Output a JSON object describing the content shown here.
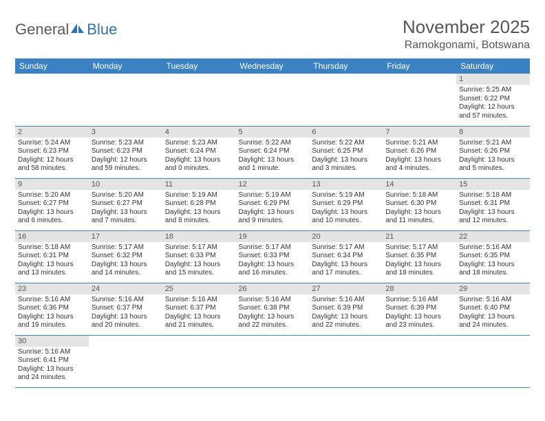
{
  "logo": {
    "part1": "General",
    "part2": "Blue"
  },
  "title": "November 2025",
  "location": "Ramokgonami, Botswana",
  "colors": {
    "header_bg": "#3b82c4",
    "header_text": "#ffffff",
    "daynum_bg": "#e4e4e4",
    "border": "#3b82c4",
    "title_text": "#555555",
    "body_text": "#333333"
  },
  "weekdays": [
    "Sunday",
    "Monday",
    "Tuesday",
    "Wednesday",
    "Thursday",
    "Friday",
    "Saturday"
  ],
  "days": {
    "1": {
      "sr": "5:25 AM",
      "ss": "6:22 PM",
      "dl": "12 hours and 57 minutes."
    },
    "2": {
      "sr": "5:24 AM",
      "ss": "6:23 PM",
      "dl": "12 hours and 58 minutes."
    },
    "3": {
      "sr": "5:23 AM",
      "ss": "6:23 PM",
      "dl": "12 hours and 59 minutes."
    },
    "4": {
      "sr": "5:23 AM",
      "ss": "6:24 PM",
      "dl": "13 hours and 0 minutes."
    },
    "5": {
      "sr": "5:22 AM",
      "ss": "6:24 PM",
      "dl": "13 hours and 1 minute."
    },
    "6": {
      "sr": "5:22 AM",
      "ss": "6:25 PM",
      "dl": "13 hours and 3 minutes."
    },
    "7": {
      "sr": "5:21 AM",
      "ss": "6:26 PM",
      "dl": "13 hours and 4 minutes."
    },
    "8": {
      "sr": "5:21 AM",
      "ss": "6:26 PM",
      "dl": "13 hours and 5 minutes."
    },
    "9": {
      "sr": "5:20 AM",
      "ss": "6:27 PM",
      "dl": "13 hours and 6 minutes."
    },
    "10": {
      "sr": "5:20 AM",
      "ss": "6:27 PM",
      "dl": "13 hours and 7 minutes."
    },
    "11": {
      "sr": "5:19 AM",
      "ss": "6:28 PM",
      "dl": "13 hours and 8 minutes."
    },
    "12": {
      "sr": "5:19 AM",
      "ss": "6:29 PM",
      "dl": "13 hours and 9 minutes."
    },
    "13": {
      "sr": "5:19 AM",
      "ss": "6:29 PM",
      "dl": "13 hours and 10 minutes."
    },
    "14": {
      "sr": "5:18 AM",
      "ss": "6:30 PM",
      "dl": "13 hours and 11 minutes."
    },
    "15": {
      "sr": "5:18 AM",
      "ss": "6:31 PM",
      "dl": "13 hours and 12 minutes."
    },
    "16": {
      "sr": "5:18 AM",
      "ss": "6:31 PM",
      "dl": "13 hours and 13 minutes."
    },
    "17": {
      "sr": "5:17 AM",
      "ss": "6:32 PM",
      "dl": "13 hours and 14 minutes."
    },
    "18": {
      "sr": "5:17 AM",
      "ss": "6:33 PM",
      "dl": "13 hours and 15 minutes."
    },
    "19": {
      "sr": "5:17 AM",
      "ss": "6:33 PM",
      "dl": "13 hours and 16 minutes."
    },
    "20": {
      "sr": "5:17 AM",
      "ss": "6:34 PM",
      "dl": "13 hours and 17 minutes."
    },
    "21": {
      "sr": "5:17 AM",
      "ss": "6:35 PM",
      "dl": "13 hours and 18 minutes."
    },
    "22": {
      "sr": "5:16 AM",
      "ss": "6:35 PM",
      "dl": "13 hours and 18 minutes."
    },
    "23": {
      "sr": "5:16 AM",
      "ss": "6:36 PM",
      "dl": "13 hours and 19 minutes."
    },
    "24": {
      "sr": "5:16 AM",
      "ss": "6:37 PM",
      "dl": "13 hours and 20 minutes."
    },
    "25": {
      "sr": "5:16 AM",
      "ss": "6:37 PM",
      "dl": "13 hours and 21 minutes."
    },
    "26": {
      "sr": "5:16 AM",
      "ss": "6:38 PM",
      "dl": "13 hours and 22 minutes."
    },
    "27": {
      "sr": "5:16 AM",
      "ss": "6:39 PM",
      "dl": "13 hours and 22 minutes."
    },
    "28": {
      "sr": "5:16 AM",
      "ss": "6:39 PM",
      "dl": "13 hours and 23 minutes."
    },
    "29": {
      "sr": "5:16 AM",
      "ss": "6:40 PM",
      "dl": "13 hours and 24 minutes."
    },
    "30": {
      "sr": "5:16 AM",
      "ss": "6:41 PM",
      "dl": "13 hours and 24 minutes."
    }
  },
  "labels": {
    "sunrise": "Sunrise: ",
    "sunset": "Sunset: ",
    "daylight": "Daylight: "
  },
  "layout": {
    "first_weekday_index": 6,
    "days_in_month": 30,
    "columns": 7
  }
}
